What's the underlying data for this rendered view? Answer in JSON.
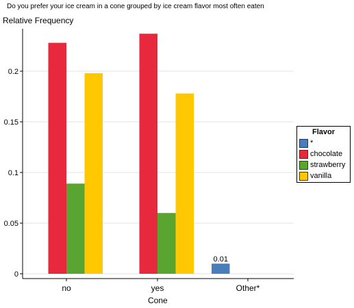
{
  "title": "Do you prefer your ice cream in a cone grouped by ice cream flavor most often eaten",
  "chart_data": {
    "type": "bar",
    "title": "Do you prefer your ice cream in a cone grouped by ice cream flavor most often eaten",
    "xlabel": "Cone",
    "ylabel": "Relative Frequency",
    "categories": [
      "no",
      "yes",
      "Other*"
    ],
    "ylim": [
      0,
      0.24
    ],
    "yticks": [
      "0",
      "0.05",
      "0.1",
      "0.15",
      "0.2"
    ],
    "ytick_values": [
      0,
      0.05,
      0.1,
      0.15,
      0.2
    ],
    "grid": true,
    "legend_title": "Flavor",
    "legend_position": "right",
    "series": [
      {
        "name": "*",
        "color": "#4a7ebb",
        "values": [
          0,
          0,
          0.01
        ]
      },
      {
        "name": "chocolate",
        "color": "#e8283c",
        "values": [
          0.228,
          0.237,
          0
        ]
      },
      {
        "name": "strawberry",
        "color": "#5aa532",
        "values": [
          0.089,
          0.06,
          0
        ]
      },
      {
        "name": "vanilla",
        "color": "#ffc800",
        "values": [
          0.198,
          0.178,
          0
        ]
      }
    ],
    "data_labels": [
      {
        "category": "Other*",
        "series": "*",
        "text": "0.01"
      }
    ]
  }
}
